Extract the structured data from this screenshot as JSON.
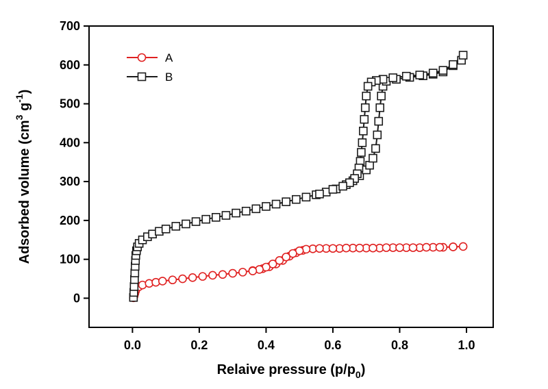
{
  "figure": {
    "background": "#ffffff",
    "border_color": "#000000",
    "text_color": "#000000"
  },
  "chart_data": {
    "type": "line",
    "title": "",
    "xlabel": "Relaive pressure (p/p0)",
    "ylabel": "Adsorbed volume (cm3 g-1)",
    "xlabel_parts": [
      {
        "t": "Relaive pressure (p/p"
      },
      {
        "t": "0",
        "pos": "sub"
      },
      {
        "t": ")"
      }
    ],
    "ylabel_parts": [
      {
        "t": "Adsorbed volume (cm"
      },
      {
        "t": "3",
        "pos": "sup"
      },
      {
        "t": " g"
      },
      {
        "t": "-1",
        "pos": "sup"
      },
      {
        "t": ")"
      }
    ],
    "xlim": [
      -0.13,
      1.08
    ],
    "ylim": [
      -75,
      700
    ],
    "xticks": [
      0.0,
      0.2,
      0.4,
      0.6,
      0.8,
      1.0
    ],
    "yticks": [
      0,
      100,
      200,
      300,
      400,
      500,
      600,
      700
    ],
    "grid": false,
    "legend_position": "top-left",
    "series": [
      {
        "name": "A",
        "color": "#e02020",
        "marker": "circle",
        "note": "adsorption branch followed by desorption branch (hysteresis loop)",
        "points": [
          [
            0.003,
            1
          ],
          [
            0.005,
            6
          ],
          [
            0.007,
            12
          ],
          [
            0.009,
            18
          ],
          [
            0.012,
            24
          ],
          [
            0.02,
            30
          ],
          [
            0.03,
            34
          ],
          [
            0.05,
            38
          ],
          [
            0.07,
            41
          ],
          [
            0.09,
            44
          ],
          [
            0.12,
            47
          ],
          [
            0.15,
            50
          ],
          [
            0.18,
            53
          ],
          [
            0.21,
            56
          ],
          [
            0.24,
            59
          ],
          [
            0.27,
            61
          ],
          [
            0.3,
            64
          ],
          [
            0.33,
            67
          ],
          [
            0.36,
            71
          ],
          [
            0.39,
            76
          ],
          [
            0.41,
            81
          ],
          [
            0.43,
            88
          ],
          [
            0.45,
            97
          ],
          [
            0.47,
            108
          ],
          [
            0.49,
            117
          ],
          [
            0.51,
            123
          ],
          [
            0.54,
            127
          ],
          [
            0.58,
            128
          ],
          [
            0.62,
            128
          ],
          [
            0.66,
            129
          ],
          [
            0.7,
            129
          ],
          [
            0.74,
            129
          ],
          [
            0.78,
            130
          ],
          [
            0.82,
            130
          ],
          [
            0.86,
            130
          ],
          [
            0.9,
            131
          ],
          [
            0.93,
            131
          ],
          [
            0.96,
            132
          ],
          [
            0.99,
            133
          ],
          [
            0.96,
            132
          ],
          [
            0.92,
            131
          ],
          [
            0.88,
            131
          ],
          [
            0.84,
            130
          ],
          [
            0.8,
            130
          ],
          [
            0.76,
            130
          ],
          [
            0.72,
            129
          ],
          [
            0.68,
            129
          ],
          [
            0.64,
            129
          ],
          [
            0.6,
            128
          ],
          [
            0.56,
            128
          ],
          [
            0.52,
            126
          ],
          [
            0.5,
            122
          ],
          [
            0.48,
            115
          ],
          [
            0.46,
            106
          ],
          [
            0.44,
            97
          ],
          [
            0.42,
            88
          ],
          [
            0.4,
            80
          ],
          [
            0.38,
            74
          ],
          [
            0.36,
            70
          ]
        ]
      },
      {
        "name": "B",
        "color": "#1a1a1a",
        "marker": "square",
        "note": "adsorption branch followed by desorption branch (hysteresis loop)",
        "points": [
          [
            0.003,
            2
          ],
          [
            0.004,
            15
          ],
          [
            0.005,
            30
          ],
          [
            0.006,
            48
          ],
          [
            0.007,
            65
          ],
          [
            0.008,
            82
          ],
          [
            0.009,
            97
          ],
          [
            0.01,
            110
          ],
          [
            0.012,
            122
          ],
          [
            0.015,
            132
          ],
          [
            0.02,
            141
          ],
          [
            0.03,
            150
          ],
          [
            0.045,
            158
          ],
          [
            0.06,
            165
          ],
          [
            0.08,
            172
          ],
          [
            0.1,
            178
          ],
          [
            0.13,
            185
          ],
          [
            0.16,
            191
          ],
          [
            0.19,
            197
          ],
          [
            0.22,
            203
          ],
          [
            0.25,
            208
          ],
          [
            0.28,
            213
          ],
          [
            0.31,
            219
          ],
          [
            0.34,
            224
          ],
          [
            0.37,
            230
          ],
          [
            0.4,
            236
          ],
          [
            0.43,
            242
          ],
          [
            0.46,
            248
          ],
          [
            0.49,
            254
          ],
          [
            0.52,
            260
          ],
          [
            0.55,
            266
          ],
          [
            0.58,
            273
          ],
          [
            0.61,
            281
          ],
          [
            0.64,
            292
          ],
          [
            0.66,
            302
          ],
          [
            0.68,
            315
          ],
          [
            0.7,
            330
          ],
          [
            0.71,
            342
          ],
          [
            0.72,
            360
          ],
          [
            0.728,
            385
          ],
          [
            0.733,
            420
          ],
          [
            0.737,
            455
          ],
          [
            0.741,
            490
          ],
          [
            0.745,
            520
          ],
          [
            0.75,
            545
          ],
          [
            0.76,
            558
          ],
          [
            0.79,
            563
          ],
          [
            0.83,
            568
          ],
          [
            0.87,
            572
          ],
          [
            0.9,
            576
          ],
          [
            0.93,
            582
          ],
          [
            0.96,
            598
          ],
          [
            0.985,
            612
          ],
          [
            0.99,
            625
          ],
          [
            0.96,
            601
          ],
          [
            0.93,
            586
          ],
          [
            0.9,
            579
          ],
          [
            0.86,
            574
          ],
          [
            0.82,
            571
          ],
          [
            0.78,
            567
          ],
          [
            0.75,
            563
          ],
          [
            0.73,
            560
          ],
          [
            0.715,
            556
          ],
          [
            0.705,
            545
          ],
          [
            0.7,
            520
          ],
          [
            0.697,
            490
          ],
          [
            0.694,
            460
          ],
          [
            0.691,
            430
          ],
          [
            0.688,
            400
          ],
          [
            0.685,
            375
          ],
          [
            0.682,
            352
          ],
          [
            0.678,
            335
          ],
          [
            0.673,
            320
          ],
          [
            0.665,
            308
          ],
          [
            0.65,
            297
          ],
          [
            0.63,
            288
          ],
          [
            0.6,
            280
          ],
          [
            0.56,
            268
          ]
        ]
      }
    ],
    "legend": [
      {
        "label": "A"
      },
      {
        "label": "B"
      }
    ]
  }
}
